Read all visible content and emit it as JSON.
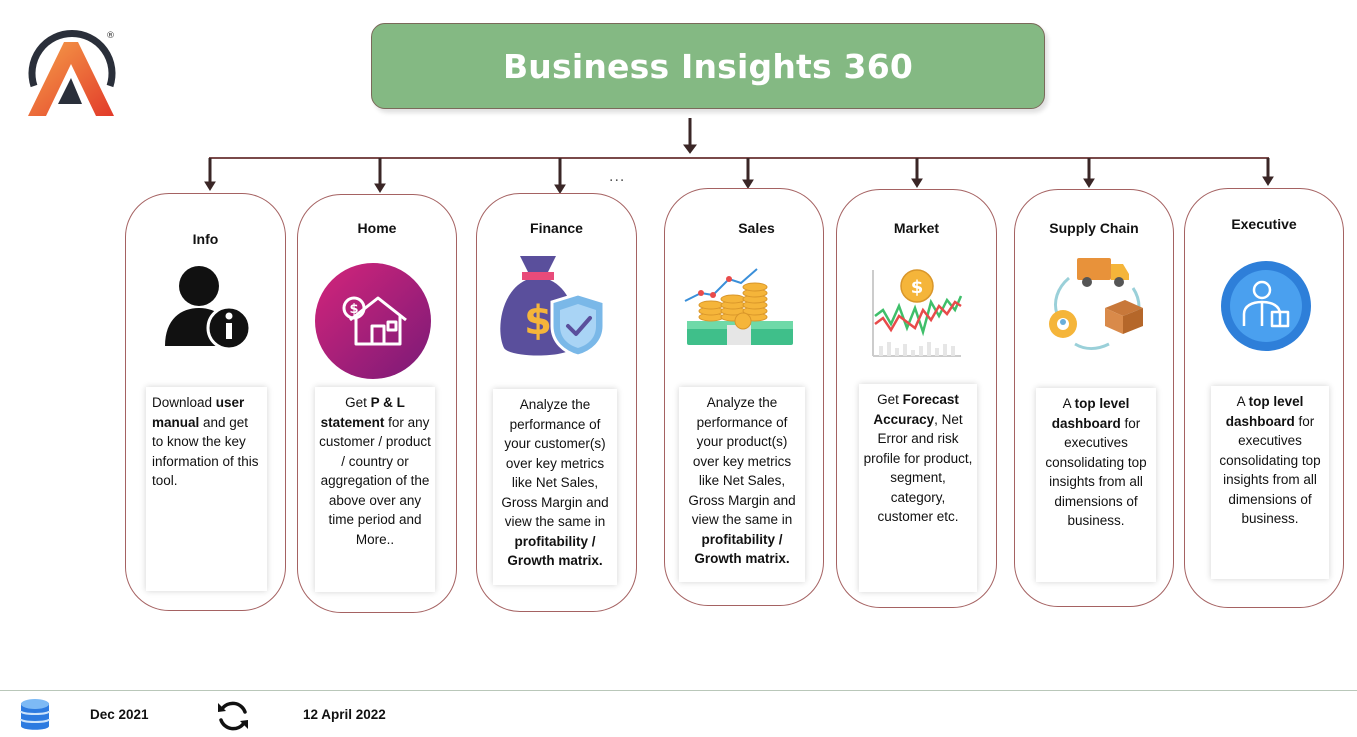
{
  "header": {
    "title": "Business Insights 360"
  },
  "more_options": "...",
  "cards": [
    {
      "id": "info",
      "title": "Info",
      "icon": "user-info-icon",
      "desc": [
        [
          "Download ",
          false
        ],
        [
          "user manual",
          true
        ],
        [
          " and get to know the key information of this tool.",
          false
        ]
      ]
    },
    {
      "id": "home",
      "title": "Home",
      "icon": "house-money-icon",
      "desc": [
        [
          "Get  ",
          false
        ],
        [
          "P & L statement",
          true
        ],
        [
          " for any customer / product / country or aggregation of the above over any time period and More..",
          false
        ]
      ]
    },
    {
      "id": "finance",
      "title": "Finance",
      "icon": "money-bag-shield-icon",
      "desc": [
        [
          "Analyze the performance of your customer(s) over key metrics like Net Sales, Gross Margin and view the same in ",
          false
        ],
        [
          "profitability / Growth matrix.",
          true
        ]
      ]
    },
    {
      "id": "sales",
      "title": "Sales",
      "icon": "coins-growth-icon",
      "desc": [
        [
          "Analyze the performance of your product(s) over key metrics like Net Sales, Gross Margin and view the same in ",
          false
        ],
        [
          "profitability / Growth matrix.",
          true
        ]
      ]
    },
    {
      "id": "market",
      "title": "Market",
      "icon": "market-chart-icon",
      "desc": [
        [
          "Get ",
          false
        ],
        [
          "Forecast Accuracy",
          true
        ],
        [
          ", Net Error and risk profile for product, segment, category, customer etc.",
          false
        ]
      ]
    },
    {
      "id": "supply",
      "title": "Supply Chain",
      "icon": "supply-chain-icon",
      "desc": [
        [
          "A ",
          false
        ],
        [
          "top level dashboard",
          true
        ],
        [
          " for executives consolidating top insights from all dimensions of business.",
          false
        ]
      ]
    },
    {
      "id": "executive",
      "title": "Executive",
      "icon": "executive-icon",
      "desc": [
        [
          "A ",
          false
        ],
        [
          "top level dashboard",
          true
        ],
        [
          " for executives consolidating top insights from all dimensions of business.",
          false
        ]
      ]
    }
  ],
  "footer": {
    "data_icon": "database-icon",
    "data_date": "Dec 2021",
    "refresh_icon": "refresh-icon",
    "refresh_date": "12 April 2022"
  },
  "colors": {
    "title_bg": "#84b983",
    "card_border": "#a56262",
    "connector": "#3a2626"
  }
}
